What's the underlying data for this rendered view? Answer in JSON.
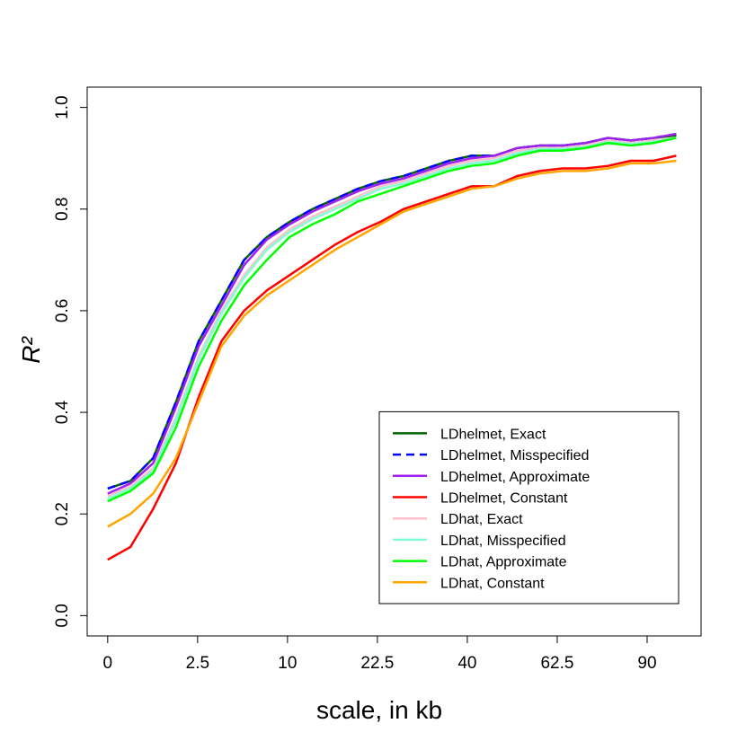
{
  "chart_data": {
    "type": "line",
    "xlabel": "scale, in kb",
    "ylabel": "R²",
    "xscale": "sqrt",
    "x": [
      0,
      0.16,
      0.64,
      1.44,
      2.56,
      4,
      5.76,
      7.84,
      10.24,
      12.96,
      16,
      19.36,
      23.04,
      27.04,
      31.36,
      36,
      40.96,
      46.24,
      51.84,
      57.76,
      64,
      70.56,
      77.44,
      84.64,
      92.16,
      100
    ],
    "xlim": [
      -0.13,
      108.9
    ],
    "xticks": [
      0,
      2.5,
      10,
      22.5,
      40,
      62.5,
      90
    ],
    "ylim": [
      -0.04,
      1.04
    ],
    "yticks": [
      {
        "value": 0,
        "label": "0.0"
      },
      0.2,
      0.4,
      0.6,
      0.8,
      {
        "value": 1,
        "label": "1.0"
      }
    ],
    "legend": "bottom-right",
    "series": [
      {
        "name": "LDhelmet, Exact",
        "color": "#006400",
        "linestyle": "solid",
        "values": [
          0.25,
          0.265,
          0.31,
          0.42,
          0.54,
          0.62,
          0.7,
          0.745,
          0.775,
          0.8,
          0.82,
          0.84,
          0.855,
          0.865,
          0.88,
          0.895,
          0.905,
          0.905,
          0.92,
          0.925,
          0.925,
          0.93,
          0.94,
          0.935,
          0.94,
          0.945
        ]
      },
      {
        "name": "LDhelmet, Misspecified",
        "color": "#0000ff",
        "linestyle": "dashed",
        "values": [
          0.25,
          0.265,
          0.31,
          0.42,
          0.54,
          0.62,
          0.7,
          0.745,
          0.775,
          0.8,
          0.82,
          0.84,
          0.855,
          0.865,
          0.88,
          0.895,
          0.905,
          0.905,
          0.92,
          0.925,
          0.925,
          0.93,
          0.94,
          0.935,
          0.94,
          0.948
        ]
      },
      {
        "name": "LDhelmet, Approximate",
        "color": "#a020f0",
        "linestyle": "solid",
        "values": [
          0.24,
          0.26,
          0.3,
          0.41,
          0.53,
          0.61,
          0.69,
          0.74,
          0.77,
          0.795,
          0.815,
          0.835,
          0.85,
          0.86,
          0.875,
          0.89,
          0.9,
          0.905,
          0.92,
          0.925,
          0.925,
          0.93,
          0.94,
          0.935,
          0.94,
          0.948
        ]
      },
      {
        "name": "LDhelmet, Constant",
        "color": "#ff0000",
        "linestyle": "solid",
        "values": [
          0.11,
          0.135,
          0.21,
          0.3,
          0.43,
          0.54,
          0.6,
          0.64,
          0.67,
          0.7,
          0.73,
          0.755,
          0.775,
          0.8,
          0.815,
          0.83,
          0.845,
          0.845,
          0.865,
          0.875,
          0.88,
          0.88,
          0.885,
          0.895,
          0.895,
          0.905
        ]
      },
      {
        "name": "LDhat, Exact",
        "color": "#ffc0cb",
        "linestyle": "solid",
        "values": [
          0.235,
          0.255,
          0.29,
          0.39,
          0.51,
          0.6,
          0.67,
          0.725,
          0.76,
          0.785,
          0.805,
          0.825,
          0.845,
          0.855,
          0.87,
          0.885,
          0.895,
          0.9,
          0.915,
          0.92,
          0.92,
          0.925,
          0.935,
          0.93,
          0.935,
          0.94
        ]
      },
      {
        "name": "LDhat, Misspecified",
        "color": "#7fffd4",
        "linestyle": "solid",
        "values": [
          0.23,
          0.25,
          0.285,
          0.385,
          0.505,
          0.595,
          0.665,
          0.72,
          0.755,
          0.78,
          0.8,
          0.82,
          0.84,
          0.85,
          0.865,
          0.88,
          0.89,
          0.895,
          0.91,
          0.918,
          0.918,
          0.922,
          0.932,
          0.928,
          0.932,
          0.94
        ]
      },
      {
        "name": "LDhat, Approximate",
        "color": "#00ff00",
        "linestyle": "solid",
        "values": [
          0.225,
          0.245,
          0.28,
          0.37,
          0.49,
          0.58,
          0.65,
          0.7,
          0.745,
          0.77,
          0.79,
          0.815,
          0.83,
          0.845,
          0.86,
          0.875,
          0.885,
          0.89,
          0.905,
          0.915,
          0.915,
          0.92,
          0.93,
          0.925,
          0.93,
          0.94
        ]
      },
      {
        "name": "LDhat, Constant",
        "color": "#ffa500",
        "linestyle": "solid",
        "values": [
          0.175,
          0.2,
          0.24,
          0.31,
          0.42,
          0.53,
          0.59,
          0.63,
          0.66,
          0.69,
          0.72,
          0.745,
          0.77,
          0.795,
          0.81,
          0.825,
          0.84,
          0.845,
          0.86,
          0.87,
          0.875,
          0.875,
          0.88,
          0.89,
          0.89,
          0.895
        ]
      }
    ]
  }
}
